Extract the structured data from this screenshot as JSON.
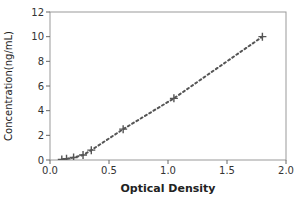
{
  "chart_data": {
    "type": "line",
    "xlabel": "Optical Density",
    "ylabel": "Concentration(ng/mL)",
    "x": [
      0.1,
      0.14,
      0.2,
      0.28,
      0.35,
      0.62,
      1.05,
      1.8
    ],
    "values": [
      0.05,
      0.1,
      0.2,
      0.4,
      0.8,
      2.5,
      5.0,
      10.0
    ],
    "color": "#555555",
    "marker": "plus",
    "line_style": "dotted",
    "xlim": [
      0,
      2
    ],
    "ylim": [
      0,
      12
    ],
    "xticks": [
      {
        "value": 0,
        "label": "0.0"
      },
      0.5,
      {
        "value": 1.0,
        "label": "1.0"
      },
      1.5,
      {
        "value": 2.0,
        "label": "2.0"
      }
    ],
    "yticks": [
      0,
      2,
      4,
      6,
      8,
      10,
      12
    ]
  }
}
